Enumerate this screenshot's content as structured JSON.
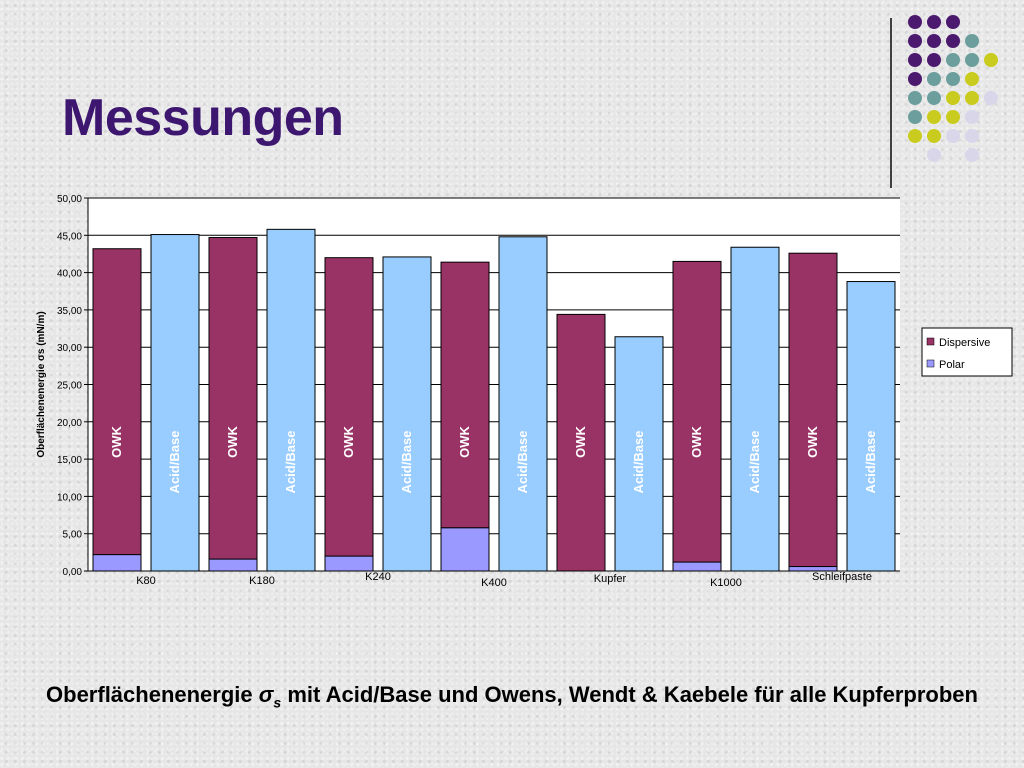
{
  "slide": {
    "title": "Messungen",
    "caption_part1": "Oberflächenenergie",
    "caption_sigma": "σ",
    "caption_sub": "s",
    "caption_part2": "mit Acid/Base und Owens, Wendt & Kaebele für alle Kupferproben"
  },
  "decor": {
    "dot_colors": {
      "purple": "#4b1a6e",
      "teal": "#6b9e9c",
      "yellow": "#c9cc1e",
      "lavender": "#d9d6ea"
    }
  },
  "chart_data": {
    "type": "bar",
    "ylabel": "Oberflächenenergie   σs (mN/m)",
    "ylim": [
      0,
      50
    ],
    "ytick_labels": [
      "0,00",
      "5,00",
      "10,00",
      "15,00",
      "20,00",
      "25,00",
      "30,00",
      "35,00",
      "40,00",
      "45,00",
      "50,00"
    ],
    "grid": true,
    "categories": [
      "K80",
      "K180",
      "K240",
      "K400",
      "Kupfer",
      "K1000",
      "Schleifpaste"
    ],
    "legend": {
      "position": "right",
      "items": [
        "Dispersive",
        "Polar"
      ]
    },
    "colors": {
      "dispersive": "#993366",
      "polar": "#9999ff",
      "acid_base": "#99ccff"
    },
    "bar_labels": {
      "owk": "OWK",
      "acid_base": "Acid/Base"
    },
    "series": [
      {
        "name": "Polar",
        "stack": "OWK",
        "values": [
          2.2,
          1.6,
          2.0,
          5.8,
          0.0,
          1.2,
          0.6
        ]
      },
      {
        "name": "Dispersive",
        "stack": "OWK",
        "values": [
          41.0,
          43.1,
          40.0,
          35.6,
          34.4,
          40.3,
          42.0
        ]
      },
      {
        "name": "Acid/Base",
        "stack": "Acid/Base",
        "values": [
          45.1,
          45.8,
          42.1,
          44.8,
          31.4,
          43.4,
          38.8
        ]
      }
    ]
  }
}
